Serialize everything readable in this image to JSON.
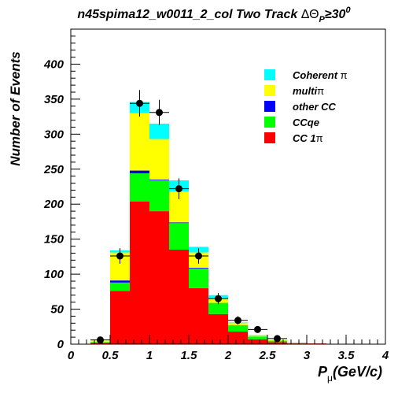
{
  "chart_data": {
    "type": "bar",
    "stacked": true,
    "title_main": "n45spima12_w0011_2_col Two Track ",
    "title_symbol": "ΔΘ",
    "title_sub": "P",
    "title_rel": "≥30",
    "title_sup": "0",
    "xlabel_main": "P",
    "xlabel_sub": "μ",
    "xlabel_unit": "(GeV/c)",
    "ylabel": "Number of Events",
    "xlim": [
      0,
      4
    ],
    "ylim": [
      0,
      450
    ],
    "xticks": [
      "0",
      "0.5",
      "1",
      "1.5",
      "2",
      "2.5",
      "3",
      "3.5",
      "4"
    ],
    "yticks": [
      "0",
      "50",
      "100",
      "150",
      "200",
      "250",
      "300",
      "350",
      "400"
    ],
    "bin_edges": [
      0.25,
      0.5,
      0.75,
      1.0,
      1.25,
      1.5,
      1.75,
      2.0,
      2.25,
      2.5,
      2.75,
      3.0,
      3.25,
      3.5
    ],
    "series": [
      {
        "name": "CC 1π",
        "color": "#ff0000",
        "values": [
          2,
          76,
          204,
          190,
          135,
          80,
          43,
          18,
          7,
          3,
          1,
          1,
          0
        ]
      },
      {
        "name": "CCqe",
        "color": "#00ff00",
        "values": [
          1,
          12,
          40,
          44,
          38,
          28,
          16,
          9,
          4,
          2,
          1,
          0,
          0
        ]
      },
      {
        "name": "other CC",
        "color": "#0000ff",
        "values": [
          0,
          3,
          4,
          1,
          1,
          1,
          0,
          0,
          0,
          0,
          0,
          0,
          0
        ]
      },
      {
        "name": "multi π",
        "color": "#ffff00",
        "values": [
          2,
          40,
          82,
          58,
          44,
          22,
          6,
          3,
          1,
          1,
          0,
          0,
          0
        ]
      },
      {
        "name": "Coherent π",
        "color": "#00ffff",
        "values": [
          0,
          3,
          16,
          22,
          16,
          8,
          5,
          1,
          1,
          0,
          0,
          0,
          0
        ]
      }
    ],
    "points": [
      {
        "x": 0.375,
        "y": 6,
        "err": 3
      },
      {
        "x": 0.625,
        "y": 126,
        "err": 11
      },
      {
        "x": 0.875,
        "y": 344,
        "err": 19
      },
      {
        "x": 1.125,
        "y": 331,
        "err": 18
      },
      {
        "x": 1.375,
        "y": 222,
        "err": 15
      },
      {
        "x": 1.625,
        "y": 126,
        "err": 11
      },
      {
        "x": 1.875,
        "y": 65,
        "err": 8
      },
      {
        "x": 2.125,
        "y": 34,
        "err": 6
      },
      {
        "x": 2.375,
        "y": 21,
        "err": 4
      },
      {
        "x": 2.625,
        "y": 8,
        "err": 3
      }
    ],
    "legend": [
      {
        "main": "Coherent ",
        "greek": "π",
        "color": "#00ffff"
      },
      {
        "main": "multi",
        "greek": "π",
        "color": "#ffff00"
      },
      {
        "main": "other CC",
        "greek": "",
        "color": "#0000ff"
      },
      {
        "main": "CCqe",
        "greek": "",
        "color": "#00ff00"
      },
      {
        "main": "CC 1",
        "greek": "π",
        "color": "#ff0000"
      }
    ],
    "legend_position": "top-right",
    "grid": false
  }
}
